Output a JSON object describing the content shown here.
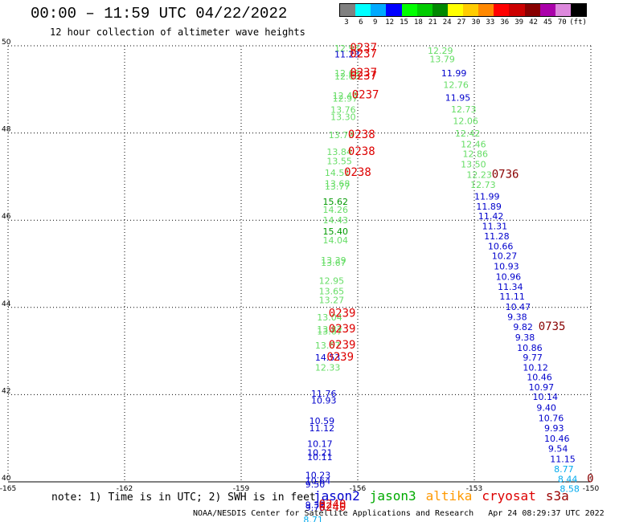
{
  "header": {
    "title": "00:00 – 11:59 UTC 04/22/2022",
    "subtitle": "12 hour collection of altimeter wave heights"
  },
  "legend": {
    "unit": "(ft)",
    "bins": [
      {
        "label": "3",
        "color": "#808080"
      },
      {
        "label": "6",
        "color": "#00ffff"
      },
      {
        "label": "9",
        "color": "#00aaff"
      },
      {
        "label": "12",
        "color": "#0000ff"
      },
      {
        "label": "15",
        "color": "#00ff00"
      },
      {
        "label": "18",
        "color": "#00cc00"
      },
      {
        "label": "21",
        "color": "#008800"
      },
      {
        "label": "24",
        "color": "#ffff00"
      },
      {
        "label": "27",
        "color": "#ffcc00"
      },
      {
        "label": "30",
        "color": "#ff8800"
      },
      {
        "label": "33",
        "color": "#ff0000"
      },
      {
        "label": "36",
        "color": "#cc0000"
      },
      {
        "label": "39",
        "color": "#880000"
      },
      {
        "label": "42",
        "color": "#aa00aa"
      },
      {
        "label": "45",
        "color": "#dd88dd"
      },
      {
        "label": "70",
        "color": "#000000"
      }
    ]
  },
  "note": "note:  1) Time is in UTC; 2) SWH is in feet",
  "satellites": [
    {
      "name": "jason2",
      "color": "#0000cc"
    },
    {
      "name": "jason3",
      "color": "#00aa00"
    },
    {
      "name": "altika",
      "color": "#ff9900"
    },
    {
      "name": "cryosat",
      "color": "#dd0000"
    },
    {
      "name": "s3a",
      "color": "#990000"
    }
  ],
  "footer": {
    "org": "NOAA/NESDIS Center for Satellite Applications and Research",
    "timestamp": "Apr 24 08:29:37 UTC 2022"
  },
  "chart_data": {
    "type": "scatter",
    "xlim": [
      -165,
      -150
    ],
    "ylim": [
      40,
      50
    ],
    "x_ticks": [
      {
        "value": -165,
        "label": "-165"
      },
      {
        "value": -162,
        "label": "-162"
      },
      {
        "value": -159,
        "label": "-159"
      },
      {
        "value": -156,
        "label": "-156"
      },
      {
        "value": -153,
        "label": "-153"
      },
      {
        "value": -150,
        "label": "-150"
      }
    ],
    "y_ticks": [
      {
        "value": 40,
        "label": "40"
      },
      {
        "value": 42,
        "label": "42"
      },
      {
        "value": 44,
        "label": "44"
      },
      {
        "value": 46,
        "label": "46"
      },
      {
        "value": 48,
        "label": "48"
      },
      {
        "value": 50,
        "label": "50"
      }
    ],
    "grid": true,
    "colors": {
      "jason2": "#0000cc",
      "jason3_light": "#66dd66",
      "jason3_dark": "#009900",
      "cyan": "#00aaee",
      "time_cryosat": "#dd0000",
      "time_s3a": "#880000"
    },
    "points": [
      {
        "lon": -156.6,
        "lat": 49.87,
        "swh": "12.95",
        "c": "jason3_light"
      },
      {
        "lon": -156.6,
        "lat": 49.73,
        "swh": "11.23",
        "c": "jason2"
      },
      {
        "lon": -156.6,
        "lat": 49.3,
        "swh": "12.68",
        "c": "jason3_light"
      },
      {
        "lon": -156.6,
        "lat": 49.23,
        "swh": "12.68",
        "c": "jason3_light"
      },
      {
        "lon": -156.65,
        "lat": 48.78,
        "swh": "12.40",
        "c": "jason3_light"
      },
      {
        "lon": -156.65,
        "lat": 48.72,
        "swh": "12.97",
        "c": "jason3_light"
      },
      {
        "lon": -156.7,
        "lat": 48.46,
        "swh": "13.76",
        "c": "jason3_light"
      },
      {
        "lon": -156.7,
        "lat": 48.3,
        "swh": "13.30",
        "c": "jason3_light"
      },
      {
        "lon": -156.75,
        "lat": 47.88,
        "swh": "13.79",
        "c": "jason3_light"
      },
      {
        "lon": -156.8,
        "lat": 47.5,
        "swh": "13.84",
        "c": "jason3_light"
      },
      {
        "lon": -156.8,
        "lat": 47.28,
        "swh": "13.55",
        "c": "jason3_light"
      },
      {
        "lon": -156.85,
        "lat": 47.02,
        "swh": "14.51",
        "c": "jason3_light"
      },
      {
        "lon": -156.85,
        "lat": 46.77,
        "swh": "13.68",
        "c": "jason3_light"
      },
      {
        "lon": -156.85,
        "lat": 46.7,
        "swh": "13.77",
        "c": "jason3_light"
      },
      {
        "lon": -156.9,
        "lat": 46.35,
        "swh": "15.62",
        "c": "jason3_dark"
      },
      {
        "lon": -156.9,
        "lat": 46.17,
        "swh": "14.26",
        "c": "jason3_light"
      },
      {
        "lon": -156.9,
        "lat": 45.93,
        "swh": "14.43",
        "c": "jason3_light"
      },
      {
        "lon": -156.9,
        "lat": 45.67,
        "swh": "15.40",
        "c": "jason3_dark"
      },
      {
        "lon": -156.9,
        "lat": 45.47,
        "swh": "14.04",
        "c": "jason3_light"
      },
      {
        "lon": -156.95,
        "lat": 45.01,
        "swh": "13.39",
        "c": "jason3_light"
      },
      {
        "lon": -156.95,
        "lat": 44.95,
        "swh": "13.67",
        "c": "jason3_light"
      },
      {
        "lon": -157.0,
        "lat": 44.54,
        "swh": "12.95",
        "c": "jason3_light"
      },
      {
        "lon": -157.0,
        "lat": 44.3,
        "swh": "13.65",
        "c": "jason3_light"
      },
      {
        "lon": -157.0,
        "lat": 44.1,
        "swh": "13.27",
        "c": "jason3_light"
      },
      {
        "lon": -157.05,
        "lat": 43.7,
        "swh": "13.04",
        "c": "jason3_light"
      },
      {
        "lon": -157.05,
        "lat": 43.43,
        "swh": "13.87",
        "c": "jason3_light"
      },
      {
        "lon": -157.05,
        "lat": 43.38,
        "swh": "13.67",
        "c": "jason3_light"
      },
      {
        "lon": -157.1,
        "lat": 43.06,
        "swh": "13.67",
        "c": "jason3_light"
      },
      {
        "lon": -157.1,
        "lat": 42.78,
        "swh": "14.53",
        "c": "jason2"
      },
      {
        "lon": -157.1,
        "lat": 42.55,
        "swh": "12.33",
        "c": "jason3_light"
      },
      {
        "lon": -157.2,
        "lat": 41.95,
        "swh": "11.76",
        "c": "jason2"
      },
      {
        "lon": -157.2,
        "lat": 41.8,
        "swh": "10.93",
        "c": "jason2"
      },
      {
        "lon": -157.25,
        "lat": 41.33,
        "swh": "10.59",
        "c": "jason2"
      },
      {
        "lon": -157.25,
        "lat": 41.16,
        "swh": "11.12",
        "c": "jason2"
      },
      {
        "lon": -157.3,
        "lat": 40.8,
        "swh": "10.17",
        "c": "jason2"
      },
      {
        "lon": -157.3,
        "lat": 40.6,
        "swh": "10.21",
        "c": "jason2"
      },
      {
        "lon": -157.3,
        "lat": 40.5,
        "swh": "10.11",
        "c": "jason2"
      },
      {
        "lon": -157.35,
        "lat": 40.08,
        "swh": "10.23",
        "c": "jason2"
      },
      {
        "lon": -157.35,
        "lat": 39.95,
        "swh": "10.64",
        "c": "jason2"
      },
      {
        "lon": -157.35,
        "lat": 39.87,
        "swh": "9.50",
        "c": "jason2"
      },
      {
        "lon": -157.35,
        "lat": 39.4,
        "swh": "9.32",
        "c": "jason2"
      },
      {
        "lon": -157.35,
        "lat": 39.34,
        "swh": "9.75",
        "c": "jason2"
      },
      {
        "lon": -157.4,
        "lat": 39.06,
        "swh": "8.71",
        "c": "cyan"
      },
      {
        "lon": -154.2,
        "lat": 49.82,
        "swh": "12.29",
        "c": "jason3_light"
      },
      {
        "lon": -154.15,
        "lat": 49.62,
        "swh": "13.79",
        "c": "jason3_light"
      },
      {
        "lon": -153.85,
        "lat": 49.3,
        "swh": "11.99",
        "c": "jason2"
      },
      {
        "lon": -153.8,
        "lat": 49.03,
        "swh": "12.76",
        "c": "jason3_light"
      },
      {
        "lon": -153.75,
        "lat": 48.74,
        "swh": "11.95",
        "c": "jason2"
      },
      {
        "lon": -153.6,
        "lat": 48.47,
        "swh": "12.73",
        "c": "jason3_light"
      },
      {
        "lon": -153.55,
        "lat": 48.2,
        "swh": "12.06",
        "c": "jason3_light"
      },
      {
        "lon": -153.5,
        "lat": 47.92,
        "swh": "12.42",
        "c": "jason3_light"
      },
      {
        "lon": -153.35,
        "lat": 47.67,
        "swh": "12.46",
        "c": "jason3_light"
      },
      {
        "lon": -153.3,
        "lat": 47.45,
        "swh": "12.86",
        "c": "jason3_light"
      },
      {
        "lon": -153.35,
        "lat": 47.21,
        "swh": "13.50",
        "c": "jason3_light"
      },
      {
        "lon": -153.2,
        "lat": 46.97,
        "swh": "12.23",
        "c": "jason3_light"
      },
      {
        "lon": -153.1,
        "lat": 46.74,
        "swh": "12.73",
        "c": "jason3_light"
      },
      {
        "lon": -153.0,
        "lat": 46.47,
        "swh": "11.99",
        "c": "jason2"
      },
      {
        "lon": -152.95,
        "lat": 46.24,
        "swh": "11.89",
        "c": "jason2"
      },
      {
        "lon": -152.9,
        "lat": 46.02,
        "swh": "11.42",
        "c": "jason2"
      },
      {
        "lon": -152.8,
        "lat": 45.79,
        "swh": "11.31",
        "c": "jason2"
      },
      {
        "lon": -152.75,
        "lat": 45.56,
        "swh": "11.28",
        "c": "jason2"
      },
      {
        "lon": -152.65,
        "lat": 45.33,
        "swh": "10.66",
        "c": "jason2"
      },
      {
        "lon": -152.55,
        "lat": 45.11,
        "swh": "10.27",
        "c": "jason2"
      },
      {
        "lon": -152.5,
        "lat": 44.87,
        "swh": "10.93",
        "c": "jason2"
      },
      {
        "lon": -152.45,
        "lat": 44.63,
        "swh": "10.96",
        "c": "jason2"
      },
      {
        "lon": -152.4,
        "lat": 44.4,
        "swh": "11.34",
        "c": "jason2"
      },
      {
        "lon": -152.35,
        "lat": 44.18,
        "swh": "11.11",
        "c": "jason2"
      },
      {
        "lon": -152.2,
        "lat": 43.94,
        "swh": "10.47",
        "c": "jason2"
      },
      {
        "lon": -152.15,
        "lat": 43.71,
        "swh": "9.38",
        "c": "jason2"
      },
      {
        "lon": -152.0,
        "lat": 43.48,
        "swh": "9.82",
        "c": "jason2"
      },
      {
        "lon": -151.95,
        "lat": 43.24,
        "swh": "9.38",
        "c": "jason2"
      },
      {
        "lon": -151.9,
        "lat": 43.0,
        "swh": "10.86",
        "c": "jason2"
      },
      {
        "lon": -151.75,
        "lat": 42.78,
        "swh": "9.77",
        "c": "jason2"
      },
      {
        "lon": -151.75,
        "lat": 42.55,
        "swh": "10.12",
        "c": "jason2"
      },
      {
        "lon": -151.65,
        "lat": 42.33,
        "swh": "10.46",
        "c": "jason2"
      },
      {
        "lon": -151.6,
        "lat": 42.1,
        "swh": "10.97",
        "c": "jason2"
      },
      {
        "lon": -151.5,
        "lat": 41.88,
        "swh": "10.14",
        "c": "jason2"
      },
      {
        "lon": -151.4,
        "lat": 41.63,
        "swh": "9.40",
        "c": "jason2"
      },
      {
        "lon": -151.35,
        "lat": 41.39,
        "swh": "10.76",
        "c": "jason2"
      },
      {
        "lon": -151.2,
        "lat": 41.16,
        "swh": "9.93",
        "c": "jason2"
      },
      {
        "lon": -151.2,
        "lat": 40.92,
        "swh": "10.46",
        "c": "jason2"
      },
      {
        "lon": -151.1,
        "lat": 40.69,
        "swh": "9.54",
        "c": "jason2"
      },
      {
        "lon": -151.05,
        "lat": 40.45,
        "swh": "11.15",
        "c": "jason2"
      },
      {
        "lon": -150.95,
        "lat": 40.22,
        "swh": "8.77",
        "c": "cyan"
      },
      {
        "lon": -150.85,
        "lat": 39.99,
        "swh": "8.44",
        "c": "cyan"
      },
      {
        "lon": -150.8,
        "lat": 39.77,
        "swh": "8.58",
        "c": "cyan"
      }
    ],
    "time_labels": [
      {
        "lon": -156.2,
        "lat": 49.87,
        "text": "0237",
        "c": "time_cryosat"
      },
      {
        "lon": -156.2,
        "lat": 49.73,
        "text": "0237",
        "c": "time_cryosat"
      },
      {
        "lon": -156.2,
        "lat": 49.3,
        "text": "0237",
        "c": "time_cryosat"
      },
      {
        "lon": -156.2,
        "lat": 49.23,
        "text": "0237",
        "c": "time_cryosat"
      },
      {
        "lon": -156.15,
        "lat": 48.79,
        "text": "0237",
        "c": "time_cryosat"
      },
      {
        "lon": -156.25,
        "lat": 47.88,
        "text": "0238",
        "c": "time_cryosat"
      },
      {
        "lon": -156.25,
        "lat": 47.5,
        "text": "0238",
        "c": "time_cryosat"
      },
      {
        "lon": -156.35,
        "lat": 47.02,
        "text": "0238",
        "c": "time_cryosat"
      },
      {
        "lon": -156.75,
        "lat": 43.78,
        "text": "0239",
        "c": "time_cryosat"
      },
      {
        "lon": -156.75,
        "lat": 43.43,
        "text": "0239",
        "c": "time_cryosat"
      },
      {
        "lon": -156.75,
        "lat": 43.06,
        "text": "0239",
        "c": "time_cryosat"
      },
      {
        "lon": -156.8,
        "lat": 42.78,
        "text": "0239",
        "c": "time_cryosat"
      },
      {
        "lon": -157.0,
        "lat": 39.4,
        "text": "0240",
        "c": "time_cryosat"
      },
      {
        "lon": -157.0,
        "lat": 39.34,
        "text": "0240",
        "c": "time_cryosat"
      },
      {
        "lon": -152.55,
        "lat": 46.97,
        "text": "0736",
        "c": "time_s3a"
      },
      {
        "lon": -151.35,
        "lat": 43.48,
        "text": "0735",
        "c": "time_s3a"
      },
      {
        "lon": -150.1,
        "lat": 39.99,
        "text": "0",
        "c": "time_s3a"
      }
    ]
  }
}
